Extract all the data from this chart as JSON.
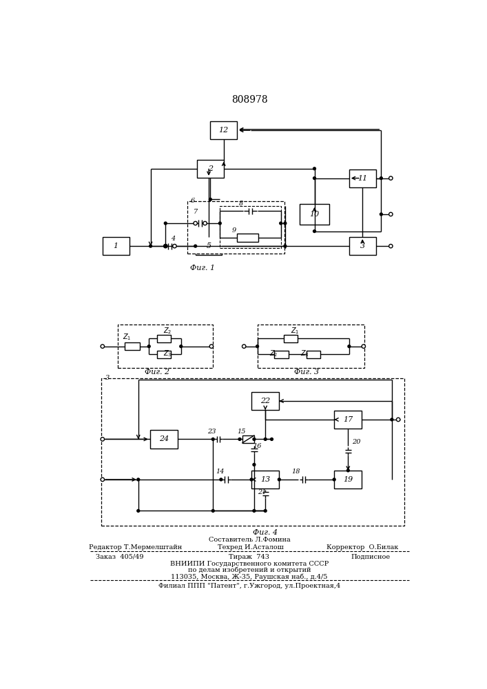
{
  "title": "808978",
  "bg_color": "#ffffff",
  "line_color": "#000000",
  "fig1_label": "Фиг. 1",
  "fig2_label": "Фиг. 2",
  "fig3_label": "Фиг. 3",
  "fig4_label": "Фиг. 4",
  "footer_line0": "Составитель Л.Фомина",
  "footer_line1a": "Редактор Т.Мермелштайн",
  "footer_line1b": "Техред И.Асталош",
  "footer_line1c": "Корректор  О.Билак",
  "footer_line2a": "Заказ  405/49",
  "footer_line2b": "Тираж  743",
  "footer_line2c": "Подписное",
  "footer_line3": "ВНИИПИ Государственного комитета СССР",
  "footer_line4": "по делам изобретений и открытий",
  "footer_line5": "113035, Москва, Ж-35, Раушская наб., д.4/5",
  "footer_line6": "Филиал ППП \"Патент\", г.Ужгород, ул.Проектная,4"
}
